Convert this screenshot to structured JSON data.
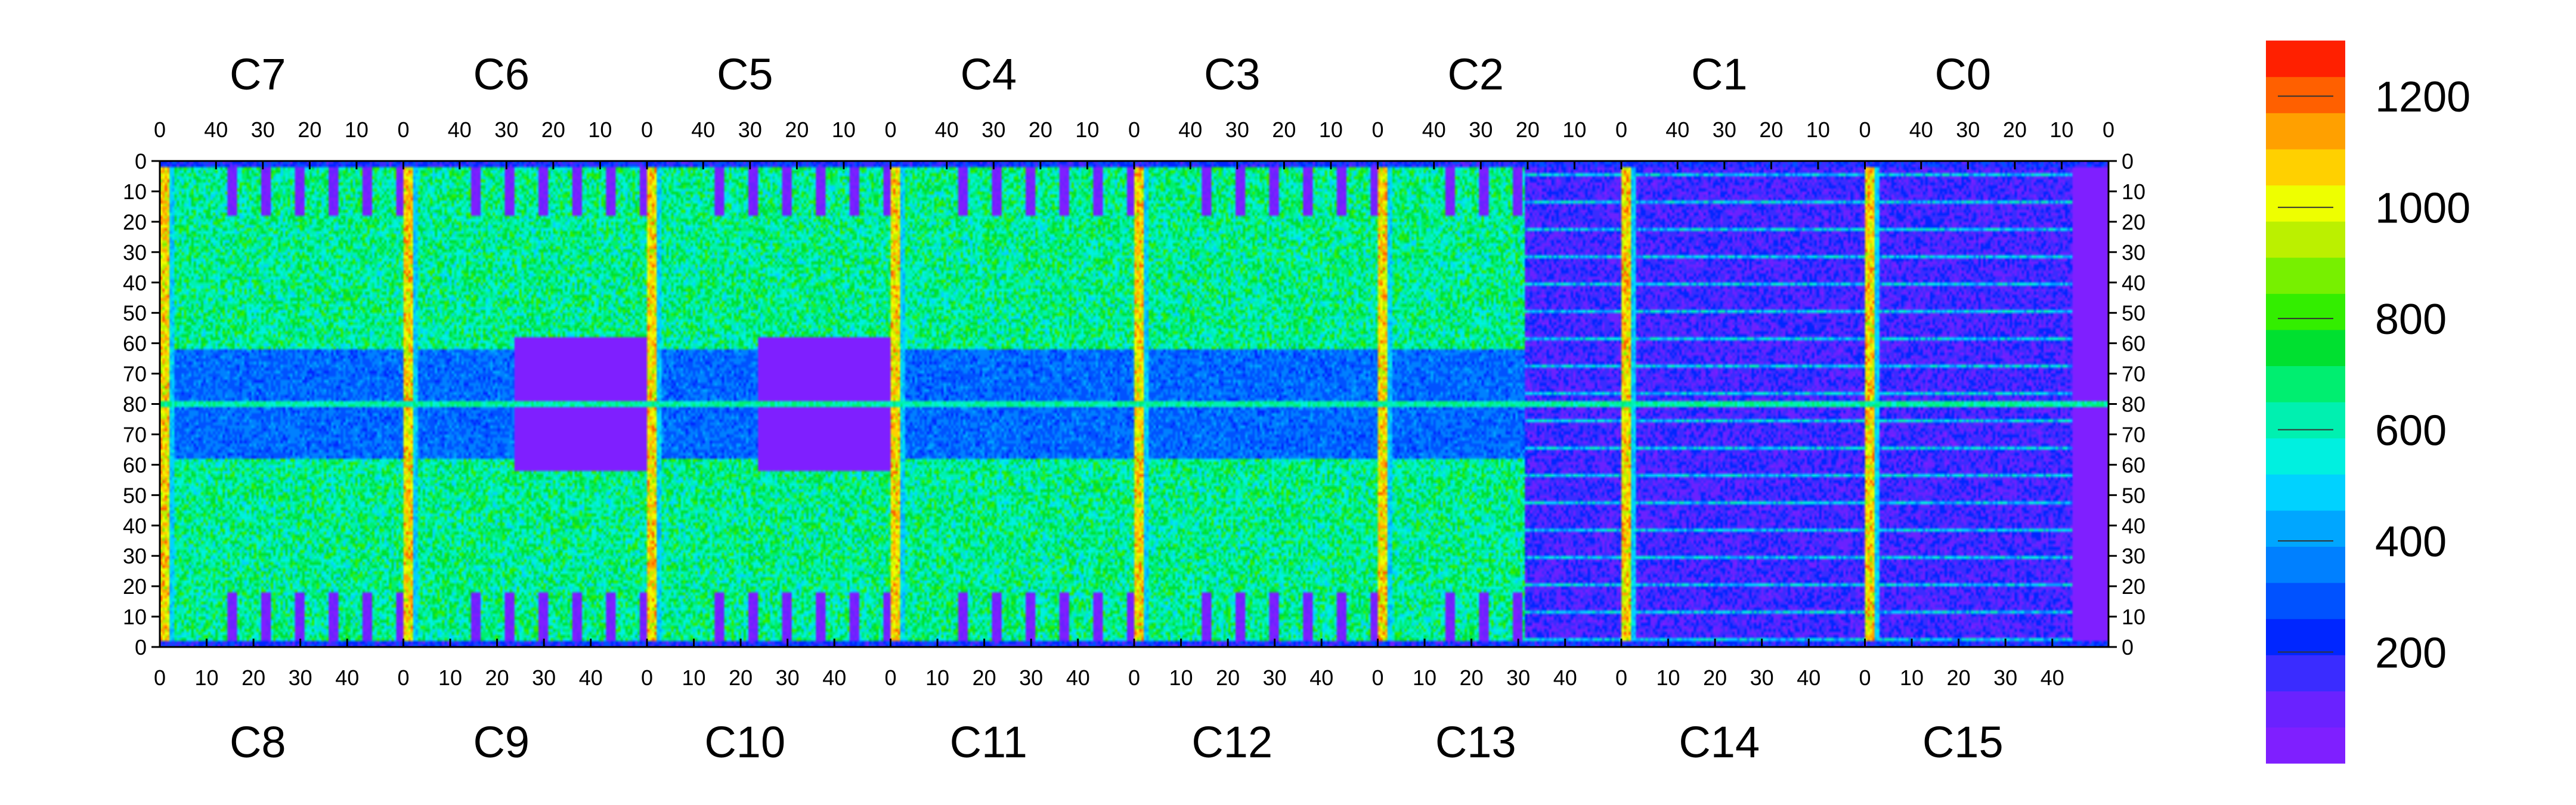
{
  "chart_data": {
    "type": "heatmap",
    "title": "",
    "xlabel": "",
    "ylabel": "",
    "top_chip_labels": [
      "C7",
      "C6",
      "C5",
      "C4",
      "C3",
      "C2",
      "C1",
      "C0"
    ],
    "bottom_chip_labels": [
      "C8",
      "C9",
      "C10",
      "C11",
      "C12",
      "C13",
      "C14",
      "C15"
    ],
    "top_x_tick_labels": [
      "40",
      "30",
      "20",
      "10",
      "0"
    ],
    "bottom_x_tick_labels": [
      "0",
      "10",
      "20",
      "30",
      "40"
    ],
    "y_tick_labels_top_half": [
      "0",
      "10",
      "20",
      "30",
      "40",
      "50",
      "60",
      "70",
      "80"
    ],
    "y_tick_labels_bottom_half": [
      "70",
      "60",
      "50",
      "40",
      "30",
      "20",
      "10",
      "0"
    ],
    "columns_per_chip": 52,
    "rows_per_half": 80,
    "colorbar": {
      "min": 0,
      "max": 1300,
      "tick_labels": [
        "1200",
        "1000",
        "800",
        "600",
        "400",
        "200"
      ],
      "tick_values": [
        1200,
        1000,
        800,
        600,
        400,
        200
      ],
      "colors": [
        "#7f1fff",
        "#6a22ff",
        "#3a2cff",
        "#0026ff",
        "#0052ff",
        "#0080ff",
        "#00a6ff",
        "#00d2ff",
        "#00f0e0",
        "#00f0b0",
        "#00ee70",
        "#00e030",
        "#33ee00",
        "#77f000",
        "#bbf000",
        "#eeff00",
        "#ffd000",
        "#ffa000",
        "#ff6000",
        "#ff2000"
      ]
    },
    "value_summary": {
      "edge_strip_columns": "approx. 900-1250 (red/orange)",
      "seam_row_80": "approx. 500-700 (green)",
      "central_band_rows_62_to_80": "approx. 250-400 (blue) for C5-C13",
      "pixel_body": "approx. 500-800 (green/cyan)",
      "C0_C1_C14_C15_region": "approx. 50-250 (violet/blue)",
      "dead_blocks": "approx. 0-50 (violet)"
    }
  }
}
